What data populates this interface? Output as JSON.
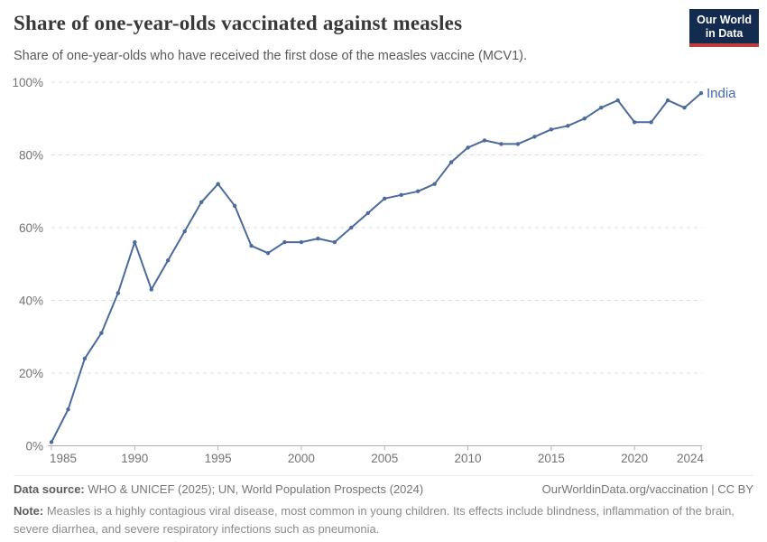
{
  "header": {
    "title": "Share of one-year-olds vaccinated against measles",
    "subtitle": "Share of one-year-olds who have received the first dose of the measles vaccine (MCV1).",
    "logo": {
      "line1": "Our World",
      "line2": "in Data"
    }
  },
  "chart_data": {
    "type": "line",
    "title": "Share of one-year-olds vaccinated against measles",
    "unit": "%",
    "x": [
      1985,
      1986,
      1987,
      1988,
      1989,
      1990,
      1991,
      1992,
      1993,
      1994,
      1995,
      1996,
      1997,
      1998,
      1999,
      2000,
      2001,
      2002,
      2003,
      2004,
      2005,
      2006,
      2007,
      2008,
      2009,
      2010,
      2011,
      2012,
      2013,
      2014,
      2015,
      2016,
      2017,
      2018,
      2019,
      2020,
      2021,
      2022,
      2023,
      2024
    ],
    "series": [
      {
        "name": "India",
        "values": [
          1,
          10,
          24,
          31,
          42,
          56,
          43,
          51,
          59,
          67,
          72,
          66,
          55,
          53,
          56,
          56,
          57,
          56,
          60,
          64,
          68,
          69,
          70,
          72,
          78,
          82,
          84,
          83,
          83,
          85,
          87,
          88,
          90,
          93,
          95,
          89,
          89,
          95,
          93,
          97
        ]
      }
    ],
    "ylim": [
      0,
      100
    ],
    "yticks": [
      0,
      20,
      40,
      60,
      80,
      100
    ],
    "ytick_labels": [
      "0%",
      "20%",
      "40%",
      "60%",
      "80%",
      "100%"
    ],
    "xticks": [
      1985,
      1990,
      1995,
      2000,
      2005,
      2010,
      2015,
      2020,
      2024
    ],
    "grid": "horizontal-dashed",
    "legend_position": "end-of-line-label",
    "colors": {
      "line": "#4C6A9C",
      "entity_label": "#4668A8",
      "grid": "#DBDBDB",
      "axis": "#B3B3B3",
      "tick_text": "#737373"
    }
  },
  "footer": {
    "datasource_label": "Data source:",
    "datasource_text": " WHO & UNICEF (2025); UN, World Population Prospects (2024)",
    "link": "OurWorldinData.org/vaccination | CC BY",
    "note_label": "Note:",
    "note_text": " Measles is a highly contagious viral disease, most common in young children. Its effects include blindness, inflammation of the brain, severe diarrhea, and severe respiratory infections such as pneumonia."
  }
}
